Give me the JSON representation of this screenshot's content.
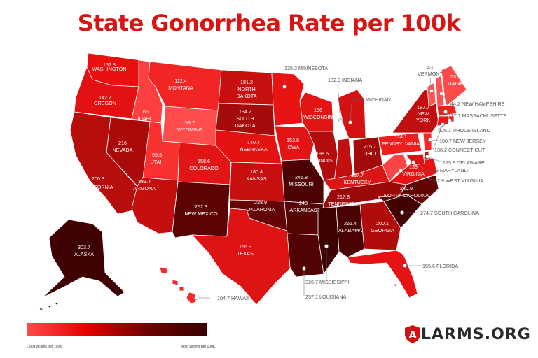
{
  "title": "State Gonorrhea Rate per 100k",
  "legend": {
    "low_label": "Least victims per 100K",
    "high_label": "Most victims per 100K",
    "colors": [
      "#ff4b4b",
      "#e40000",
      "#6e0000",
      "#3a0000"
    ]
  },
  "logo": {
    "letter": "A",
    "rest": "LARMS.ORG"
  },
  "states": [
    {
      "id": "washington",
      "name": "WASHINGTON",
      "value": "151.3",
      "color": "#ea1010"
    },
    {
      "id": "oregon",
      "name": "OREGON",
      "value": "142.7",
      "color": "#e31111"
    },
    {
      "id": "california",
      "name": "CALIFORNIA",
      "value": "200.3",
      "color": "#b60d0d"
    },
    {
      "id": "nevada",
      "name": "NEVADA",
      "value": "216",
      "color": "#aa0a0a"
    },
    {
      "id": "idaho",
      "name": "IDAHO",
      "value": "66",
      "color": "#fd3f3f"
    },
    {
      "id": "montana",
      "name": "MONTANA",
      "value": "112.4",
      "color": "#f22525"
    },
    {
      "id": "wyoming",
      "name": "WYOMING",
      "value": "53.7",
      "color": "#ff4d4d"
    },
    {
      "id": "utah",
      "name": "UTAH",
      "value": "93.3",
      "color": "#f83131"
    },
    {
      "id": "arizona",
      "name": "ARIZONA",
      "value": "183.4",
      "color": "#c50f0f"
    },
    {
      "id": "colorado",
      "name": "COLORADO",
      "value": "158.6",
      "color": "#e01515"
    },
    {
      "id": "new-mexico",
      "name": "NEW MEXICO",
      "value": "252.3",
      "color": "#5c0404"
    },
    {
      "id": "north-dakota",
      "name": "NORTH DAKOTA",
      "value": "181.2",
      "color": "#c70f0f"
    },
    {
      "id": "south-dakota",
      "name": "SOUTH DAKOTA",
      "value": "194.2",
      "color": "#a50b0b"
    },
    {
      "id": "nebraska",
      "name": "NEBRASKA",
      "value": "140.4",
      "color": "#e51212"
    },
    {
      "id": "kansas",
      "name": "KANSAS",
      "value": "180.4",
      "color": "#c80f0f"
    },
    {
      "id": "oklahoma",
      "name": "OKLAHOMA",
      "value": "228.9",
      "color": "#650404"
    },
    {
      "id": "texas",
      "name": "TEXAS",
      "value": "166.9",
      "color": "#de1414"
    },
    {
      "id": "minnesota",
      "name": "MINNESOTA",
      "value": "135.2",
      "color": "#e81313"
    },
    {
      "id": "iowa",
      "name": "IOWA",
      "value": "153.8",
      "color": "#e21414"
    },
    {
      "id": "missouri",
      "name": "MISSOURI",
      "value": "246.8",
      "color": "#4d0303"
    },
    {
      "id": "arkansas",
      "name": "ARKANSAS",
      "value": "243",
      "color": "#560404"
    },
    {
      "id": "louisiana",
      "name": "LOUISIANA",
      "value": "257.1",
      "color": "#520303"
    },
    {
      "id": "wisconsin",
      "name": "WISCONSIN",
      "value": "156",
      "color": "#e31414"
    },
    {
      "id": "illinois",
      "name": "ILLINOIS",
      "value": "198.6",
      "color": "#b30c0c"
    },
    {
      "id": "michigan",
      "name": "MICHIGAN",
      "value": "167.5",
      "color": "#d51212"
    },
    {
      "id": "indiana",
      "name": "INDIANA",
      "value": "182.9",
      "color": "#c40f0f"
    },
    {
      "id": "ohio",
      "name": "OHIO",
      "value": "215.7",
      "color": "#a30a0a"
    },
    {
      "id": "kentucky",
      "name": "KENTUCKY",
      "value": "167.7",
      "color": "#db1414"
    },
    {
      "id": "tennessee",
      "name": "TENNESSEE",
      "value": "217.8",
      "color": "#9c0909"
    },
    {
      "id": "mississippi",
      "name": "MISSISSIPPI",
      "value": "326.7",
      "color": "#3d0202"
    },
    {
      "id": "alabama",
      "name": "ALABAMA",
      "value": "261.4",
      "color": "#4a0303"
    },
    {
      "id": "georgia",
      "name": "GEORGIA",
      "value": "200.1",
      "color": "#b10c0c"
    },
    {
      "id": "florida",
      "name": "FLORIDA",
      "value": "155.6",
      "color": "#e51313"
    },
    {
      "id": "south-carolina",
      "name": "SOUTH CAROLINA",
      "value": "274.7",
      "color": "#430202"
    },
    {
      "id": "north-carolina",
      "name": "NORTH CAROLINA",
      "value": "230.9",
      "color": "#600404"
    },
    {
      "id": "virginia",
      "name": "VIRGINIA",
      "value": "139",
      "color": "#e71212"
    },
    {
      "id": "west-virginia",
      "name": "WEST VIRGINIA",
      "value": "62.9",
      "color": "#fd4444"
    },
    {
      "id": "pennsylvania",
      "name": "PENNSYLVANIA",
      "value": "124.1",
      "color": "#ee1e1e"
    },
    {
      "id": "new-york",
      "name": "NEW YORK",
      "value": "187.7",
      "color": "#c10e0e"
    },
    {
      "id": "vermont",
      "name": "VERMONT",
      "value": "43",
      "color": "#ff5656"
    },
    {
      "id": "new-hampshire",
      "name": "NEW HAMPSHIRE",
      "value": "44.2",
      "color": "#ff5252"
    },
    {
      "id": "maine",
      "name": "MAINE",
      "value": "53.1",
      "color": "#ff4a4a"
    },
    {
      "id": "massachusetts",
      "name": "MASSACHUSETTS",
      "value": "117.7",
      "color": "#ef2020"
    },
    {
      "id": "rhode-island",
      "name": "RHODE ISLAND",
      "value": "126.1",
      "color": "#ec1c1c"
    },
    {
      "id": "connecticut",
      "name": "CONNECTICUT",
      "value": "138.2",
      "color": "#e81616"
    },
    {
      "id": "new-jersey",
      "name": "NEW JERSEY",
      "value": "100.7",
      "color": "#f42a2a"
    },
    {
      "id": "delaware",
      "name": "DELAWARE",
      "value": "175.8",
      "color": "#d21111"
    },
    {
      "id": "maryland",
      "name": "MARYLAND",
      "value": "170.3",
      "color": "#d81313"
    },
    {
      "id": "alaska",
      "name": "ALASKA",
      "value": "303.7",
      "color": "#3f0202"
    },
    {
      "id": "hawaii",
      "name": "HAWAII",
      "value": "104.7",
      "color": "#f22a2a"
    }
  ]
}
